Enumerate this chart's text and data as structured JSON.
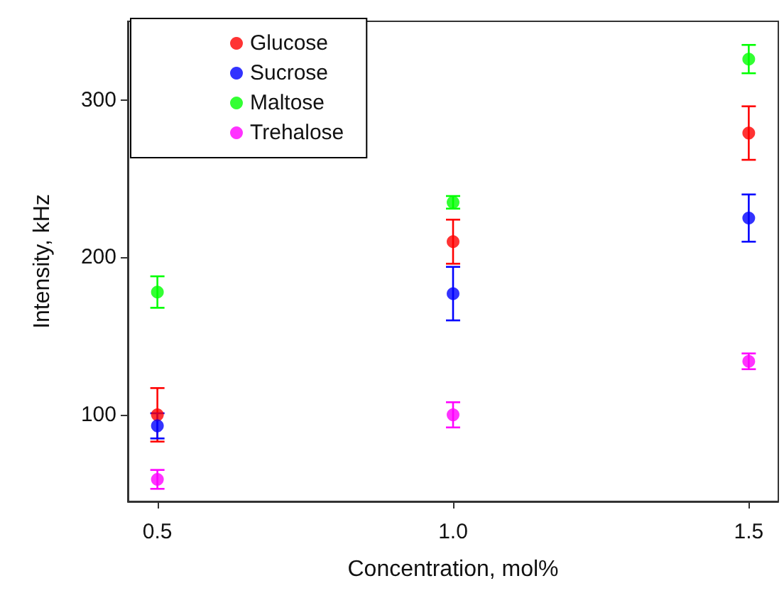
{
  "chart_data": {
    "type": "scatter",
    "xlabel": "Concentration, mol%",
    "ylabel": "Intensity, kHz",
    "x": [
      0.5,
      1.0,
      1.5
    ],
    "series": [
      {
        "name": "Glucose",
        "color": "#ff0000",
        "values": [
          100,
          210,
          279
        ],
        "errors": [
          17,
          14,
          17
        ]
      },
      {
        "name": "Sucrose",
        "color": "#0000ff",
        "values": [
          93,
          177,
          225
        ],
        "errors": [
          8,
          17,
          15
        ]
      },
      {
        "name": "Maltose",
        "color": "#00ff00",
        "values": [
          178,
          235,
          326
        ],
        "errors": [
          10,
          4,
          9
        ]
      },
      {
        "name": "Trehalose",
        "color": "#ff00ff",
        "values": [
          59,
          100,
          134
        ],
        "errors": [
          6,
          8,
          5
        ]
      }
    ],
    "xlim": [
      0.45,
      1.55
    ],
    "xticks": [
      {
        "value": 0.5,
        "label": "0.5"
      },
      {
        "value": 1.0,
        "label": "1.0"
      },
      {
        "value": 1.5,
        "label": "1.5"
      }
    ],
    "ylim": [
      45,
      350
    ],
    "yticks": [
      100,
      200,
      300
    ],
    "grid": false,
    "legend": "top left",
    "marker": "circle"
  }
}
